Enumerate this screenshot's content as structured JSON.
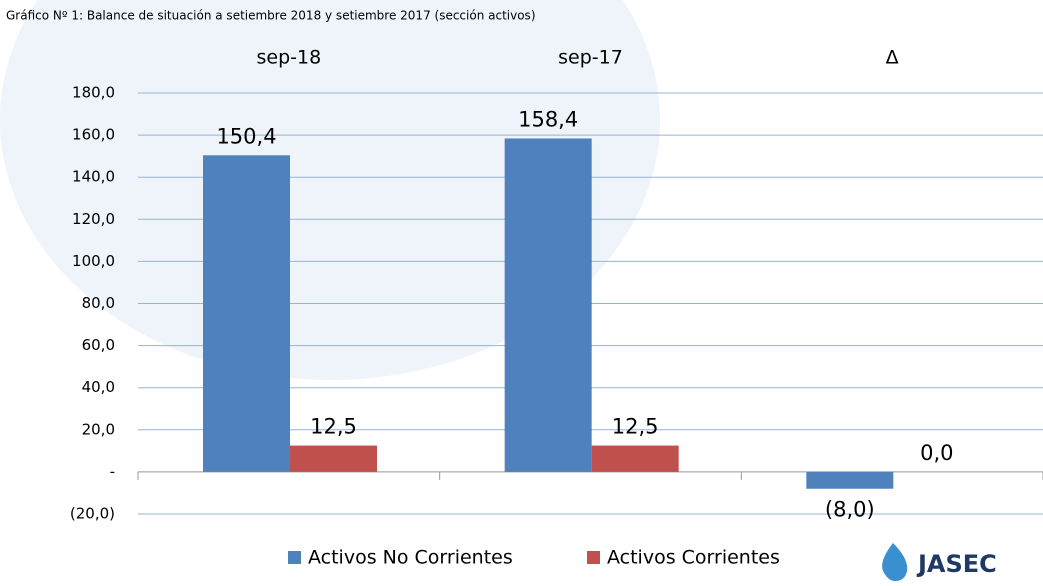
{
  "chart_data": {
    "type": "bar",
    "title": "Gráfico Nº 1: Balance de situación a setiembre 2018 y  setiembre 2017  (sección activos)",
    "categories": [
      "sep-18",
      "sep-17",
      "Δ"
    ],
    "series": [
      {
        "name": "Activos No Corrientes",
        "color": "#4f81bd",
        "values": [
          150.4,
          158.4,
          -8.0
        ],
        "value_labels": [
          "150,4",
          "158,4",
          "(8,0)"
        ]
      },
      {
        "name": "Activos Corrientes",
        "color": "#c0504d",
        "values": [
          12.5,
          12.5,
          0.0
        ],
        "value_labels": [
          "12,5",
          "12,5",
          "0,0"
        ]
      }
    ],
    "ylim": [
      -20,
      180
    ],
    "yticks": [
      {
        "value": -20,
        "label": "(20,0)"
      },
      {
        "value": 0,
        "label": "-"
      },
      {
        "value": 20,
        "label": "20,0"
      },
      {
        "value": 40,
        "label": "40,0"
      },
      {
        "value": 60,
        "label": "60,0"
      },
      {
        "value": 80,
        "label": "80,0"
      },
      {
        "value": 100,
        "label": "100,0"
      },
      {
        "value": 120,
        "label": "120,0"
      },
      {
        "value": 140,
        "label": "140,0"
      },
      {
        "value": 160,
        "label": "160,0"
      },
      {
        "value": 180,
        "label": "180,0"
      }
    ],
    "grid": true,
    "legend": "bottom",
    "logo_text": "JASEC"
  }
}
